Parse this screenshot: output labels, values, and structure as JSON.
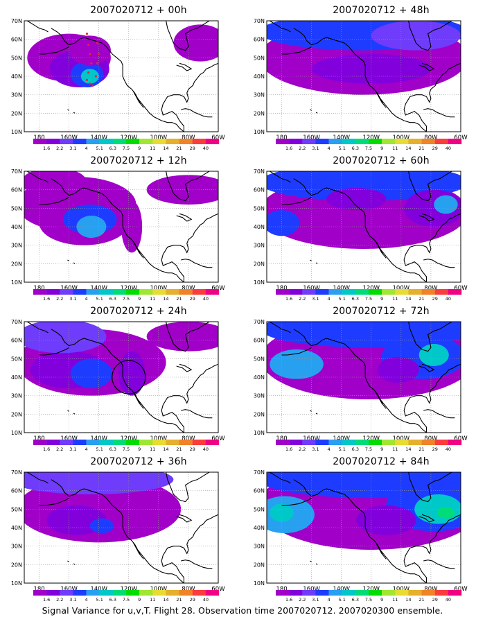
{
  "panels": [
    {
      "title": "2007020712 + 00h",
      "column": "left",
      "row": 0
    },
    {
      "title": "2007020712 + 12h",
      "column": "left",
      "row": 1
    },
    {
      "title": "2007020712 + 24h",
      "column": "left",
      "row": 2
    },
    {
      "title": "2007020712 + 36h",
      "column": "left",
      "row": 3
    },
    {
      "title": "2007020712 + 48h",
      "column": "right",
      "row": 0
    },
    {
      "title": "2007020712 + 60h",
      "column": "right",
      "row": 1
    },
    {
      "title": "2007020712 + 72h",
      "column": "right",
      "row": 2
    },
    {
      "title": "2007020712 + 84h",
      "column": "right",
      "row": 3
    }
  ],
  "lat_labels": [
    "70N",
    "60N",
    "50N",
    "40N",
    "30N",
    "20N",
    "10N"
  ],
  "lon_labels": [
    "180",
    "160W",
    "140W",
    "120W",
    "100W",
    "80W",
    "60W"
  ],
  "colorbar": {
    "labels": [
      "1.6",
      "2.2",
      "3.1",
      "4",
      "5.1",
      "6.3",
      "7.5",
      "9",
      "11",
      "14",
      "21",
      "29",
      "40"
    ],
    "colors": [
      "#a000c8",
      "#8200dc",
      "#6e3cfa",
      "#1e3cff",
      "#28a0f0",
      "#00c8c8",
      "#00dc78",
      "#00dc00",
      "#a0e632",
      "#e6dc32",
      "#e6af2d",
      "#f08228",
      "#fa3c3c",
      "#f00082"
    ]
  },
  "footer": "Signal Variance for u,v,T. Flight 28. Observation time 2007020712. 2007020300 ensemble."
}
